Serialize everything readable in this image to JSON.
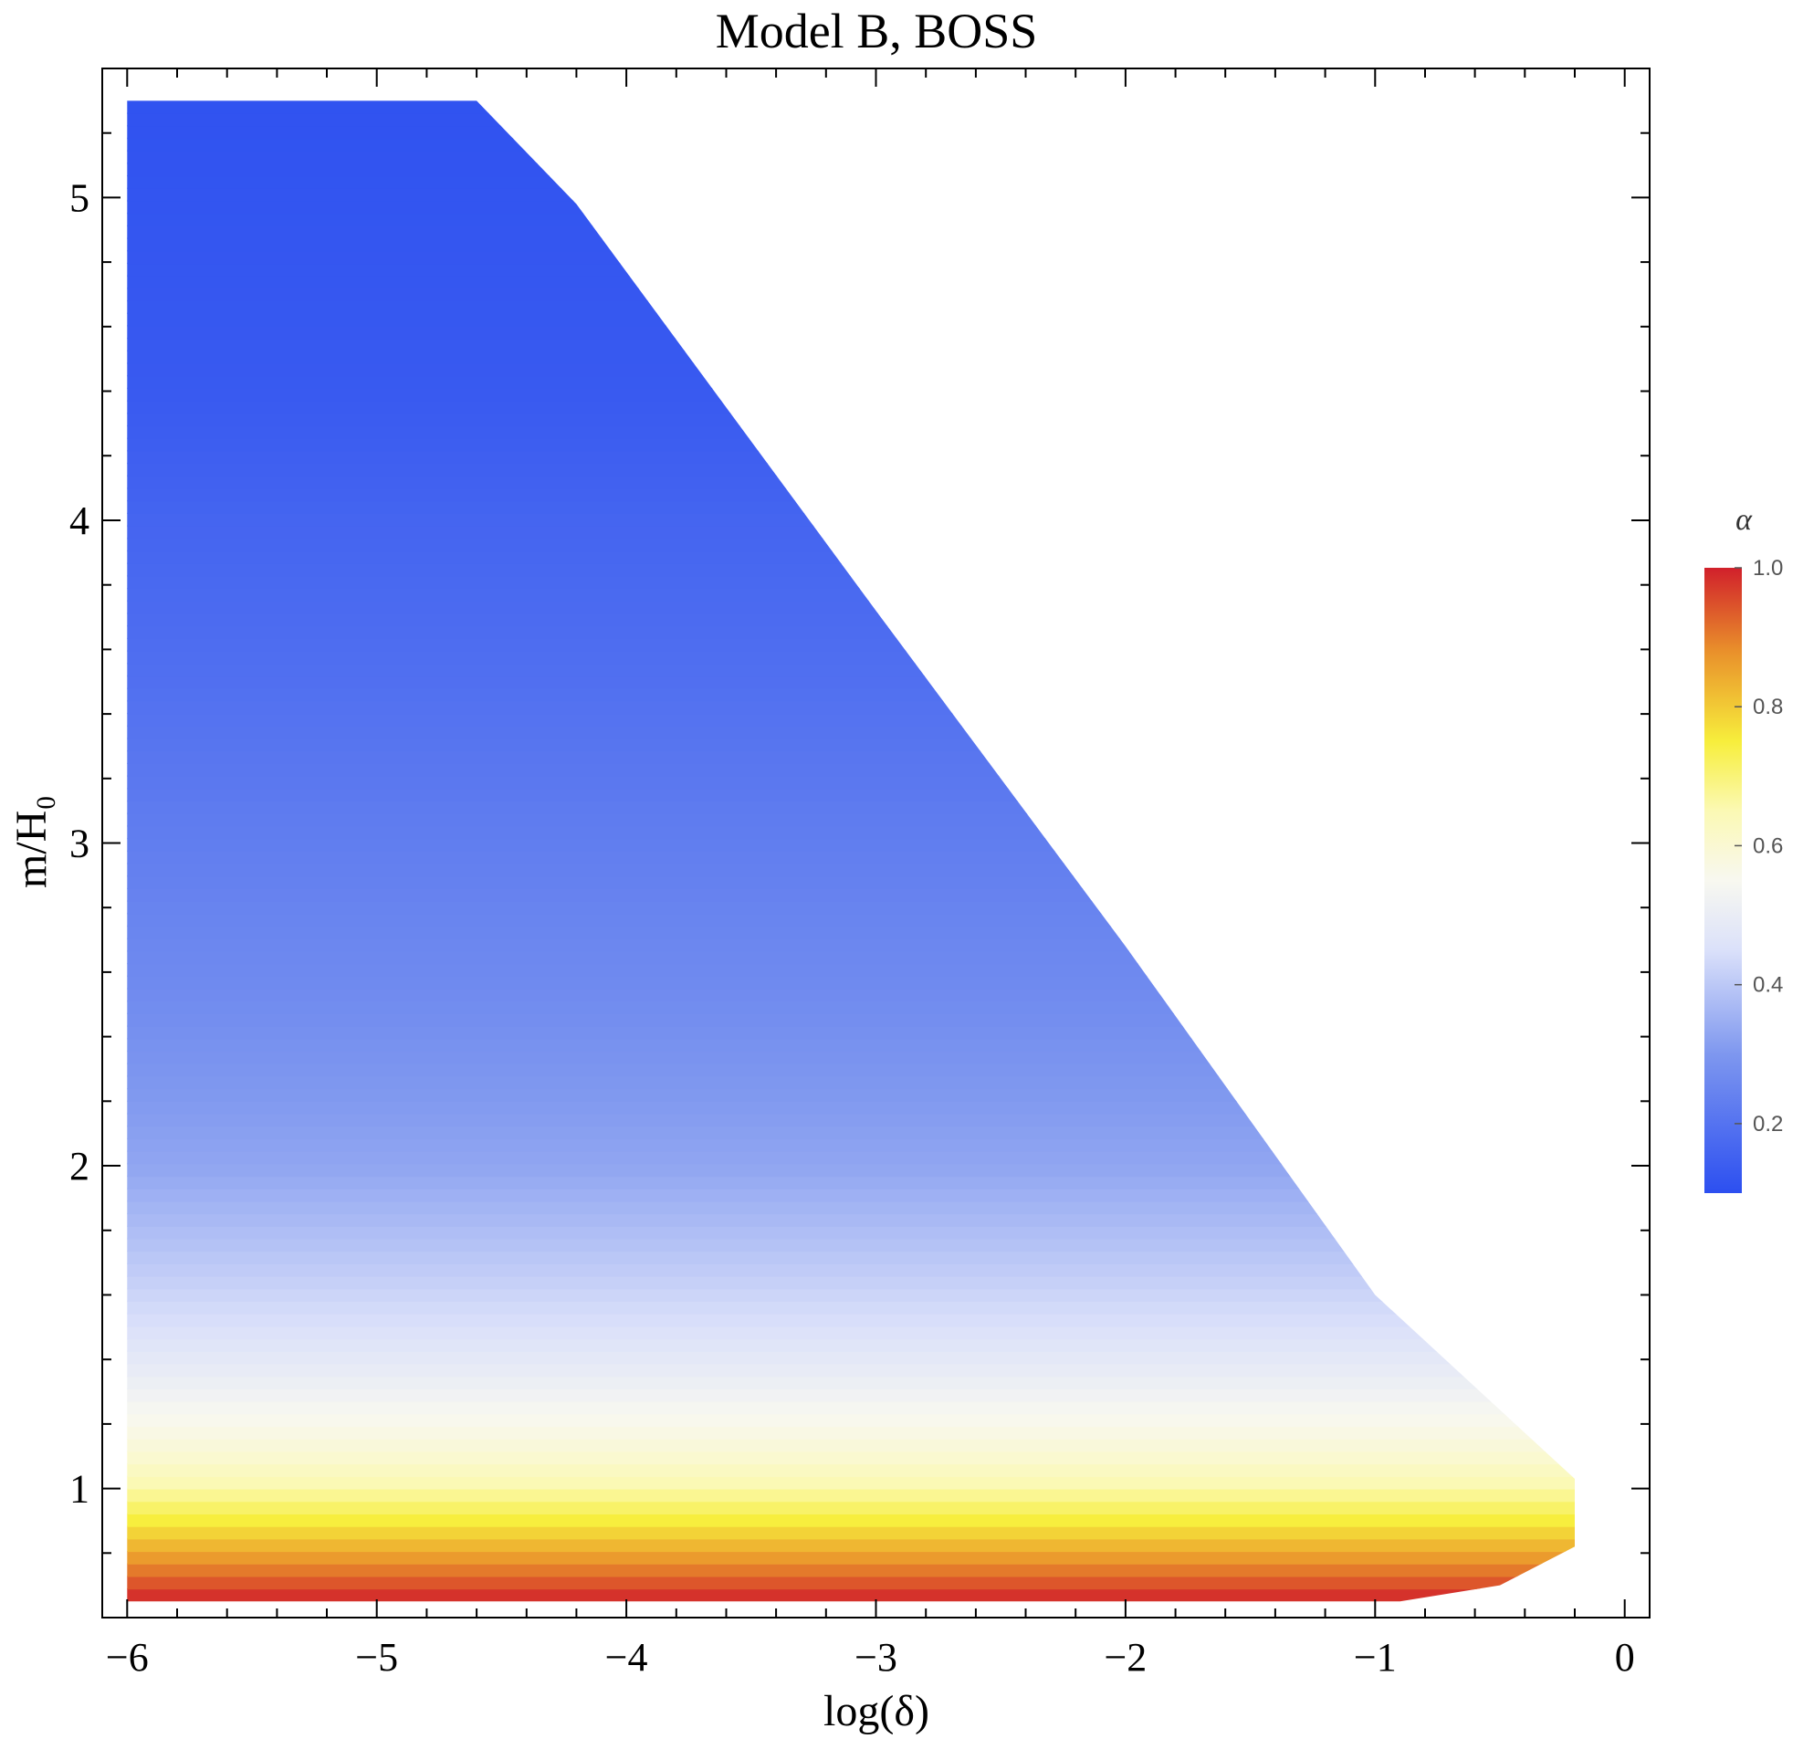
{
  "chart_data": {
    "type": "heatmap",
    "title": "Model B, BOSS",
    "xlabel": "log(δ)",
    "ylabel": "m/H₀",
    "xlim": [
      -6.1,
      0.1
    ],
    "ylim": [
      0.6,
      5.4
    ],
    "xticks": [
      -6,
      -5,
      -4,
      -3,
      -2,
      -1,
      0
    ],
    "xtick_labels": [
      "−6",
      "−5",
      "−4",
      "−3",
      "−2",
      "−1",
      "0"
    ],
    "yticks": [
      1,
      2,
      3,
      4,
      5
    ],
    "ytick_labels": [
      "1",
      "2",
      "3",
      "4",
      "5"
    ],
    "region_boundary": [
      [
        -6.0,
        0.65
      ],
      [
        -6.0,
        5.3
      ],
      [
        -4.6,
        5.3
      ],
      [
        -4.2,
        4.98
      ],
      [
        -3.0,
        3.72
      ],
      [
        -2.0,
        2.68
      ],
      [
        -1.0,
        1.6
      ],
      [
        -0.2,
        1.03
      ],
      [
        -0.2,
        0.82
      ],
      [
        -0.5,
        0.7
      ],
      [
        -0.9,
        0.65
      ]
    ],
    "alpha_profile_low_delta": {
      "m": [
        0.65,
        0.72,
        0.8,
        0.9,
        1.0,
        1.1,
        1.2,
        1.35,
        1.5,
        1.7,
        2.0,
        2.5,
        3.0,
        3.5,
        4.0,
        4.4,
        5.3
      ],
      "alpha": [
        1.0,
        0.93,
        0.85,
        0.75,
        0.66,
        0.6,
        0.56,
        0.5,
        0.45,
        0.4,
        0.33,
        0.27,
        0.23,
        0.19,
        0.16,
        0.13,
        0.11
      ]
    },
    "colorbar": {
      "label": "α",
      "range": [
        0.1,
        1.0
      ],
      "ticks": [
        0.2,
        0.4,
        0.6,
        0.8,
        1.0
      ],
      "tick_labels": [
        "0.2",
        "0.4",
        "0.6",
        "0.8",
        "1.0"
      ],
      "color_stops": [
        {
          "value": 0.1,
          "color": "#2c4ff0"
        },
        {
          "value": 0.3,
          "color": "#7e97ef"
        },
        {
          "value": 0.45,
          "color": "#dbe1fa"
        },
        {
          "value": 0.55,
          "color": "#f8f8f0"
        },
        {
          "value": 0.65,
          "color": "#fbf9b4"
        },
        {
          "value": 0.75,
          "color": "#f7ee3c"
        },
        {
          "value": 0.88,
          "color": "#e9902b"
        },
        {
          "value": 1.0,
          "color": "#d1202b"
        }
      ]
    },
    "grid": false,
    "legend": "right (colorbar)"
  }
}
